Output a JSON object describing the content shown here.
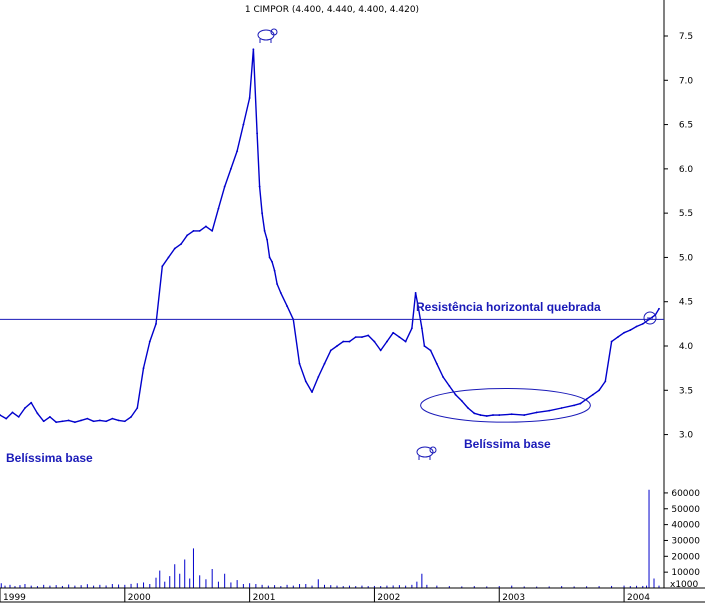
{
  "chart_data": {
    "type": "line",
    "title": "1 CIMPOR (4.400, 4.440, 4.400, 4.420)",
    "y_axis": {
      "ticks": [
        3.0,
        3.5,
        4.0,
        4.5,
        5.0,
        5.5,
        6.0,
        6.5,
        7.0,
        7.5
      ],
      "tick_labels": [
        "3.0",
        "3.5",
        "4.0",
        "4.5",
        "5.0",
        "5.5",
        "6.0",
        "6.5",
        "7.0",
        "7.5"
      ],
      "ylim": [
        2.6,
        7.85
      ]
    },
    "x_axis": {
      "xlim": [
        1999.0,
        2004.32
      ],
      "ticks": [
        1999,
        2000,
        2001,
        2002,
        2003,
        2004
      ],
      "tick_labels": [
        "1999",
        "2000",
        "2001",
        "2002",
        "2003",
        "2004"
      ]
    },
    "volume_axis": {
      "ticks": [
        10000,
        20000,
        30000,
        40000,
        50000,
        60000
      ],
      "tick_labels": [
        "10000",
        "20000",
        "30000",
        "40000",
        "50000",
        "60000"
      ],
      "unit_label": "x1000",
      "max": 65000
    },
    "price_series": {
      "name": "CIMPOR",
      "color": "#0000cc",
      "x": [
        1999.0,
        1999.05,
        1999.1,
        1999.15,
        1999.2,
        1999.25,
        1999.3,
        1999.35,
        1999.4,
        1999.45,
        1999.5,
        1999.55,
        1999.6,
        1999.65,
        1999.7,
        1999.75,
        1999.8,
        1999.85,
        1999.9,
        1999.95,
        2000.0,
        2000.05,
        2000.1,
        2000.15,
        2000.2,
        2000.25,
        2000.3,
        2000.35,
        2000.4,
        2000.45,
        2000.5,
        2000.55,
        2000.6,
        2000.65,
        2000.7,
        2000.75,
        2000.8,
        2000.85,
        2000.9,
        2000.95,
        2001.0,
        2001.03,
        2001.06,
        2001.08,
        2001.1,
        2001.12,
        2001.14,
        2001.16,
        2001.18,
        2001.2,
        2001.22,
        2001.25,
        2001.3,
        2001.35,
        2001.4,
        2001.45,
        2001.5,
        2001.55,
        2001.6,
        2001.65,
        2001.7,
        2001.75,
        2001.8,
        2001.85,
        2001.9,
        2001.95,
        2002.0,
        2002.05,
        2002.1,
        2002.15,
        2002.2,
        2002.25,
        2002.3,
        2002.33,
        2002.35,
        2002.38,
        2002.4,
        2002.45,
        2002.5,
        2002.55,
        2002.6,
        2002.65,
        2002.7,
        2002.75,
        2002.8,
        2002.85,
        2002.9,
        2002.95,
        2003.0,
        2003.1,
        2003.2,
        2003.3,
        2003.4,
        2003.5,
        2003.6,
        2003.65,
        2003.7,
        2003.75,
        2003.8,
        2003.85,
        2003.9,
        2003.95,
        2004.0,
        2004.05,
        2004.1,
        2004.15,
        2004.2,
        2004.25,
        2004.28
      ],
      "y": [
        3.22,
        3.18,
        3.25,
        3.2,
        3.3,
        3.36,
        3.24,
        3.15,
        3.2,
        3.14,
        3.15,
        3.16,
        3.14,
        3.16,
        3.18,
        3.15,
        3.16,
        3.15,
        3.18,
        3.16,
        3.15,
        3.2,
        3.3,
        3.75,
        4.05,
        4.25,
        4.9,
        5.0,
        5.1,
        5.15,
        5.25,
        5.3,
        5.3,
        5.35,
        5.3,
        5.55,
        5.8,
        6.0,
        6.2,
        6.5,
        6.8,
        7.35,
        6.4,
        5.8,
        5.5,
        5.3,
        5.2,
        5.0,
        4.95,
        4.85,
        4.7,
        4.6,
        4.45,
        4.3,
        3.8,
        3.6,
        3.48,
        3.65,
        3.8,
        3.95,
        4.0,
        4.05,
        4.05,
        4.1,
        4.1,
        4.12,
        4.05,
        3.95,
        4.05,
        4.15,
        4.1,
        4.05,
        4.2,
        4.6,
        4.45,
        4.2,
        4.0,
        3.95,
        3.8,
        3.65,
        3.55,
        3.45,
        3.38,
        3.3,
        3.24,
        3.22,
        3.21,
        3.22,
        3.22,
        3.23,
        3.22,
        3.25,
        3.27,
        3.3,
        3.33,
        3.35,
        3.4,
        3.45,
        3.5,
        3.6,
        4.05,
        4.1,
        4.15,
        4.18,
        4.22,
        4.25,
        4.3,
        4.35,
        4.42
      ]
    },
    "volume_series": {
      "name": "Volume",
      "color": "#0000cc",
      "x": [
        1999.01,
        1999.04,
        1999.08,
        1999.12,
        1999.16,
        1999.2,
        1999.25,
        1999.3,
        1999.35,
        1999.4,
        1999.45,
        1999.5,
        1999.55,
        1999.6,
        1999.65,
        1999.7,
        1999.75,
        1999.8,
        1999.85,
        1999.9,
        1999.95,
        2000.0,
        2000.05,
        2000.1,
        2000.15,
        2000.2,
        2000.25,
        2000.28,
        2000.32,
        2000.36,
        2000.4,
        2000.44,
        2000.48,
        2000.52,
        2000.55,
        2000.6,
        2000.65,
        2000.7,
        2000.75,
        2000.8,
        2000.85,
        2000.9,
        2000.95,
        2001.0,
        2001.05,
        2001.1,
        2001.15,
        2001.2,
        2001.25,
        2001.3,
        2001.35,
        2001.4,
        2001.45,
        2001.5,
        2001.55,
        2001.6,
        2001.65,
        2001.7,
        2001.75,
        2001.8,
        2001.85,
        2001.9,
        2001.95,
        2002.0,
        2002.05,
        2002.1,
        2002.15,
        2002.2,
        2002.25,
        2002.3,
        2002.34,
        2002.38,
        2002.42,
        2002.5,
        2002.6,
        2002.7,
        2002.8,
        2002.9,
        2003.0,
        2003.1,
        2003.2,
        2003.3,
        2003.4,
        2003.5,
        2003.6,
        2003.7,
        2003.8,
        2003.9,
        2004.0,
        2004.05,
        2004.1,
        2004.15,
        2004.18,
        2004.2,
        2004.24,
        2004.28
      ],
      "y": [
        3000,
        1500,
        2000,
        1200,
        1800,
        2500,
        1500,
        1200,
        2000,
        1500,
        1800,
        1300,
        2200,
        1500,
        1800,
        2400,
        1500,
        2000,
        1600,
        2500,
        2200,
        2000,
        2600,
        3000,
        3500,
        2500,
        6500,
        11000,
        4000,
        7500,
        15000,
        9000,
        18000,
        6000,
        25000,
        8000,
        5500,
        12000,
        4000,
        9000,
        3500,
        5000,
        2500,
        3000,
        2500,
        2000,
        1500,
        1800,
        1200,
        2000,
        1500,
        2500,
        2500,
        1500,
        5500,
        2000,
        1800,
        1500,
        1200,
        1500,
        1200,
        1500,
        1200,
        1300,
        1200,
        1500,
        1600,
        1800,
        1500,
        2000,
        4000,
        9000,
        2000,
        1500,
        1200,
        1000,
        1200,
        1000,
        1200,
        1500,
        1000,
        900,
        1000,
        1200,
        1000,
        1100,
        1200,
        1300,
        1500,
        1200,
        1400,
        1300,
        1500,
        62000,
        6000,
        1500
      ]
    },
    "resistance_line": {
      "y": 4.3
    },
    "annotations": [
      {
        "text": "Resistência horizontal quebrada"
      },
      {
        "text": "Belíssima base"
      },
      {
        "text": "Belíssima base"
      }
    ]
  }
}
